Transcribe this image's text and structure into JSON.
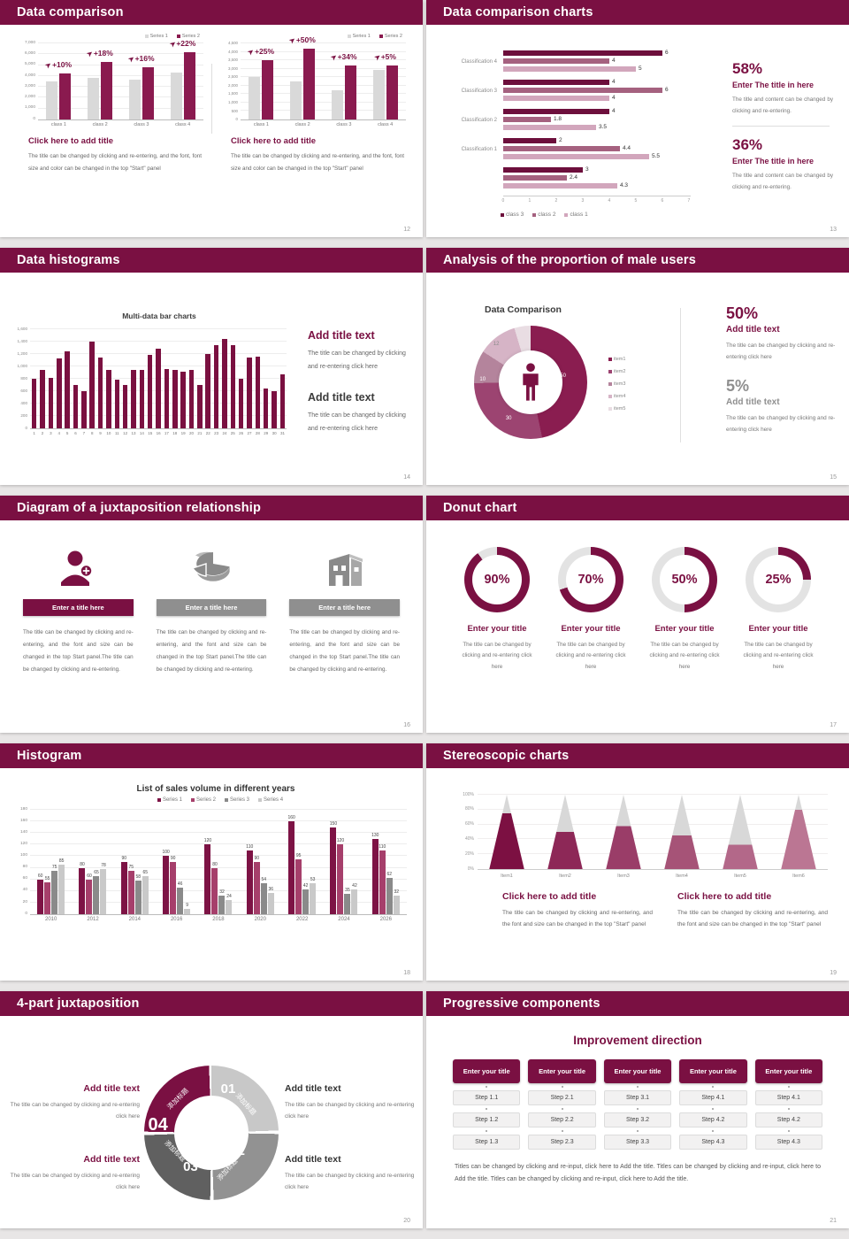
{
  "theme": {
    "maroon": "#7a1042",
    "bar_maroon": "#8a1a4f",
    "gray_bar": "#d9d9d9",
    "text_gray": "#666666",
    "page_bg": "#e8e6e6"
  },
  "slides": [
    {
      "id": 12,
      "title": "Data comparison",
      "page_num": "12",
      "legend": [
        "Series 1",
        "Series 2"
      ],
      "panels": [
        {
          "chart": {
            "type": "bar",
            "categories": [
              "class 1",
              "class 2",
              "class 3",
              "class 4"
            ],
            "series": [
              {
                "name": "Series 1",
                "values": [
                  3500,
                  3800,
                  3700,
                  4300
                ]
              },
              {
                "name": "Series 2",
                "values": [
                  4200,
                  5300,
                  4800,
                  6200
                ]
              }
            ],
            "growth_labels": [
              "+10%",
              "+18%",
              "+16%",
              "+22%"
            ],
            "ylim": [
              0,
              7000
            ],
            "ytick_step": 1000
          },
          "block_title": "Click here to add title",
          "block_body": "The title can be changed by clicking and re-entering, and the font, font size and color can be changed in the top \"Start\" panel"
        },
        {
          "chart": {
            "type": "bar",
            "categories": [
              "class 1",
              "class 2",
              "class 3",
              "class 4"
            ],
            "series": [
              {
                "name": "Series 1",
                "values": [
                  2500,
                  2250,
                  1750,
                  2950
                ]
              },
              {
                "name": "Series 2",
                "values": [
                  3500,
                  4200,
                  3200,
                  3200
                ]
              }
            ],
            "growth_labels": [
              "+25%",
              "+50%",
              "+34%",
              "+5%"
            ],
            "ylim": [
              0,
              4500
            ],
            "ytick_step": 500
          },
          "block_title": "Click here to add title",
          "block_body": "The title can be changed by clicking and re-entering, and the font, font size and color can be changed in the top \"Start\" panel"
        }
      ]
    },
    {
      "id": 13,
      "title": "Data comparison charts",
      "page_num": "13",
      "chart": {
        "type": "bar-horizontal",
        "xlim": [
          0,
          7
        ],
        "xticks": [
          "0",
          "1",
          "2",
          "3",
          "4",
          "5",
          "6",
          "7"
        ],
        "legend": [
          "class 3",
          "class 2",
          "class 1"
        ],
        "groups": [
          {
            "label": "Classification 4",
            "values": [
              6,
              4,
              5
            ]
          },
          {
            "label": "Classification 3",
            "values": [
              4,
              6,
              4
            ]
          },
          {
            "label": "Classification 2",
            "values": [
              4,
              1.8,
              3.5
            ]
          },
          {
            "label": "Classification 1",
            "values": [
              2,
              4.4,
              5.5
            ]
          },
          {
            "label": "",
            "values": [
              3,
              2.4,
              4.3
            ]
          }
        ]
      },
      "stats": [
        {
          "value": "58%",
          "title": "Enter The title in here",
          "body": "The title and content can be changed by clicking and re-entering."
        },
        {
          "value": "36%",
          "title": "Enter The title in here",
          "body": "The title and content can be changed by clicking and re-entering."
        }
      ]
    },
    {
      "id": 14,
      "title": "Data histograms",
      "page_num": "14",
      "chart": {
        "type": "bar",
        "title": "Multi-data bar charts",
        "ylim": [
          0,
          1600
        ],
        "ytick_step": 200,
        "categories": [
          "1",
          "2",
          "3",
          "4",
          "5",
          "6",
          "7",
          "8",
          "9",
          "10",
          "11",
          "12",
          "13",
          "14",
          "15",
          "16",
          "17",
          "18",
          "19",
          "20",
          "21",
          "22",
          "23",
          "24",
          "25",
          "26",
          "27",
          "28",
          "29",
          "30",
          "31"
        ],
        "values": [
          800,
          950,
          820,
          1130,
          1240,
          700,
          600,
          1400,
          1150,
          950,
          780,
          700,
          950,
          950,
          1180,
          1290,
          960,
          950,
          920,
          950,
          700,
          1200,
          1350,
          1450,
          1350,
          800,
          1150,
          1160,
          650,
          600,
          870
        ]
      },
      "blocks": [
        {
          "title": "Add title text",
          "style": "maroon",
          "body": "The title can be changed by clicking and re-entering click here"
        },
        {
          "title": "Add title text",
          "style": "dark",
          "body": "The title can be changed by clicking and re-entering click here"
        }
      ]
    },
    {
      "id": 15,
      "title": "Analysis of the proportion of male users",
      "page_num": "15",
      "chart": {
        "type": "donut",
        "title": "Data Comparison",
        "items": [
          {
            "label": "item1",
            "value": 50
          },
          {
            "label": "item2",
            "value": 30
          },
          {
            "label": "item3",
            "value": 10
          },
          {
            "label": "item4",
            "value": 12
          },
          {
            "label": "item5",
            "value": 5
          }
        ],
        "colors": [
          "#8a1d50",
          "#9c4471",
          "#b4849c",
          "#d6b4c6",
          "#e9dde3"
        ],
        "shown_labels": [
          "50",
          "30",
          "10",
          "12"
        ]
      },
      "stats": [
        {
          "value": "50%",
          "style": "maroon",
          "title": "Add title text",
          "body": "The title can be changed by clicking and re-entering click here"
        },
        {
          "value": "5%",
          "style": "gray",
          "title": "Add title text",
          "body": "The title can be changed by clicking and re-entering click here"
        }
      ]
    },
    {
      "id": 16,
      "title": "Diagram of a juxtaposition relationship",
      "page_num": "16",
      "columns": [
        {
          "icon": "person-add",
          "style": "maroon",
          "bar_label": "Enter a title here",
          "body": "The title can be changed by clicking and re-entering, and the font and size can be changed in the top Start panel.The title can be changed by clicking and re-entering."
        },
        {
          "icon": "pie-chart",
          "style": "gray",
          "bar_label": "Enter a title here",
          "body": "The title can be changed by clicking and re-entering, and the font and size can be changed in the top Start panel.The title can be changed by clicking and re-entering."
        },
        {
          "icon": "building",
          "style": "gray",
          "bar_label": "Enter a title here",
          "body": "The title can be changed by clicking and re-entering, and the font and size can be changed in the top Start panel.The title can be changed by clicking and re-entering."
        }
      ]
    },
    {
      "id": 17,
      "title": "Donut chart",
      "page_num": "17",
      "gauges": [
        {
          "percent": 90,
          "label": "90%"
        },
        {
          "percent": 70,
          "label": "70%"
        },
        {
          "percent": 50,
          "label": "50%"
        },
        {
          "percent": 25,
          "label": "25%"
        }
      ],
      "gauge_title": "Enter your title",
      "gauge_body": "The title can be changed by clicking and re-entering click here"
    },
    {
      "id": 18,
      "title": "Histogram",
      "page_num": "18",
      "chart": {
        "type": "bar",
        "title": "List of sales volume in different years",
        "categories": [
          "2010",
          "2012",
          "2014",
          "2016",
          "2018",
          "2020",
          "2022",
          "2024",
          "2026"
        ],
        "series": [
          {
            "name": "Series 1",
            "values": [
              60,
              80,
              90,
              100,
              120,
              110,
              160,
              150,
              130
            ]
          },
          {
            "name": "Series 2",
            "values": [
              55,
              60,
              75,
              90,
              80,
              90,
              95,
              120,
              110
            ]
          },
          {
            "name": "Series 3",
            "values": [
              75,
              65,
              58,
              46,
              32,
              54,
              42,
              35,
              62
            ]
          },
          {
            "name": "Series 4",
            "values": [
              85,
              78,
              65,
              9,
              24,
              36,
              53,
              42,
              32
            ]
          }
        ],
        "ylim": [
          0,
          180
        ],
        "ytick_step": 20
      }
    },
    {
      "id": 19,
      "title": "Stereoscopic charts",
      "page_num": "19",
      "chart": {
        "type": "cone",
        "categories": [
          "Item1",
          "Item2",
          "Item3",
          "Item4",
          "Item5",
          "Item6"
        ],
        "values_percent": [
          75,
          50,
          58,
          45,
          33,
          80
        ],
        "colors": [
          "#7c1042",
          "#8d2857",
          "#9a3d68",
          "#a65377",
          "#b36889",
          "#bb7693"
        ],
        "yticks": [
          "0%",
          "20%",
          "40%",
          "60%",
          "80%",
          "100%"
        ]
      },
      "blocks": [
        {
          "title": "Click here to add title",
          "body": "The title can be changed by clicking and re-entering, and the font and size can be changed in the top \"Start\" panel"
        },
        {
          "title": "Click here to add title",
          "body": "The title can be changed by clicking and re-entering, and the font and size can be changed in the top \"Start\" panel"
        }
      ]
    },
    {
      "id": 20,
      "title": "4-part juxtaposition",
      "page_num": "20",
      "ring": {
        "segments": [
          {
            "num": "01",
            "label": "添加标题",
            "color": "#c8c8c8"
          },
          {
            "num": "02",
            "label": "添加标题",
            "color": "#929292"
          },
          {
            "num": "03",
            "label": "添加标题",
            "color": "#606060"
          },
          {
            "num": "04",
            "label": "添加标题",
            "color": "#7a1042"
          }
        ]
      },
      "blocks": [
        {
          "pos": "left-top",
          "style": "maroon",
          "title": "Add title text",
          "body": "The title can be changed by clicking and re-entering click here"
        },
        {
          "pos": "right-top",
          "style": "dark",
          "title": "Add title text",
          "body": "The title can be changed by clicking and re-entering click here"
        },
        {
          "pos": "left-bottom",
          "style": "maroon",
          "title": "Add title text",
          "body": "The title can be changed by clicking and re-entering click here"
        },
        {
          "pos": "right-bottom",
          "style": "dark",
          "title": "Add title text",
          "body": "The title can be changed by clicking and re-entering click here"
        }
      ]
    },
    {
      "id": 21,
      "title": "Progressive components",
      "page_num": "21",
      "heading": "Improvement direction",
      "columns": [
        {
          "header": "Enter your title",
          "steps": [
            "Step 1.1",
            "Step 1.2",
            "Step 1.3"
          ]
        },
        {
          "header": "Enter your title",
          "steps": [
            "Step 2.1",
            "Step 2.2",
            "Step 2.3"
          ]
        },
        {
          "header": "Enter your title",
          "steps": [
            "Step 3.1",
            "Step 3.2",
            "Step 3.3"
          ]
        },
        {
          "header": "Enter your title",
          "steps": [
            "Step 4.1",
            "Step 4.2",
            "Step 4.3"
          ]
        },
        {
          "header": "Enter your title",
          "steps": [
            "Step 4.1",
            "Step 4.2",
            "Step 4.3"
          ]
        }
      ],
      "footer": "Titles can be changed by clicking and re-input, click here to Add the title. Titles can be changed by clicking and re-input, click here to Add the title. Titles can be changed by clicking and re-input, click here to Add the title."
    }
  ],
  "chart_data": [
    {
      "id": "slide12-left",
      "type": "bar",
      "categories": [
        "class 1",
        "class 2",
        "class 3",
        "class 4"
      ],
      "series": [
        {
          "name": "Series 1",
          "values": [
            3500,
            3800,
            3700,
            4300
          ]
        },
        {
          "name": "Series 2",
          "values": [
            4200,
            5300,
            4800,
            6200
          ]
        }
      ],
      "annotations": [
        "+10%",
        "+18%",
        "+16%",
        "+22%"
      ],
      "ylim": [
        0,
        7000
      ]
    },
    {
      "id": "slide12-right",
      "type": "bar",
      "categories": [
        "class 1",
        "class 2",
        "class 3",
        "class 4"
      ],
      "series": [
        {
          "name": "Series 1",
          "values": [
            2500,
            2250,
            1750,
            2950
          ]
        },
        {
          "name": "Series 2",
          "values": [
            3500,
            4200,
            3200,
            3200
          ]
        }
      ],
      "annotations": [
        "+25%",
        "+50%",
        "+34%",
        "+5%"
      ],
      "ylim": [
        0,
        4500
      ]
    },
    {
      "id": "slide13",
      "type": "bar",
      "orientation": "horizontal",
      "xlim": [
        0,
        7
      ],
      "categories": [
        "Classification 4",
        "Classification 3",
        "Classification 2",
        "Classification 1",
        ""
      ],
      "series": [
        {
          "name": "class 3",
          "values": [
            6,
            4,
            4,
            2,
            3
          ]
        },
        {
          "name": "class 2",
          "values": [
            4,
            6,
            1.8,
            4.4,
            2.4
          ]
        },
        {
          "name": "class 1",
          "values": [
            5,
            4,
            3.5,
            5.5,
            4.3
          ]
        }
      ]
    },
    {
      "id": "slide14",
      "type": "bar",
      "title": "Multi-data bar charts",
      "ylim": [
        0,
        1600
      ],
      "categories": [
        "1",
        "2",
        "3",
        "4",
        "5",
        "6",
        "7",
        "8",
        "9",
        "10",
        "11",
        "12",
        "13",
        "14",
        "15",
        "16",
        "17",
        "18",
        "19",
        "20",
        "21",
        "22",
        "23",
        "24",
        "25",
        "26",
        "27",
        "28",
        "29",
        "30",
        "31"
      ],
      "values": [
        800,
        950,
        820,
        1130,
        1240,
        700,
        600,
        1400,
        1150,
        950,
        780,
        700,
        950,
        950,
        1180,
        1290,
        960,
        950,
        920,
        950,
        700,
        1200,
        1350,
        1450,
        1350,
        800,
        1150,
        1160,
        650,
        600,
        870
      ]
    },
    {
      "id": "slide15",
      "type": "pie",
      "title": "Data Comparison",
      "categories": [
        "item1",
        "item2",
        "item3",
        "item4",
        "item5"
      ],
      "values": [
        50,
        30,
        10,
        12,
        5
      ]
    },
    {
      "id": "slide17",
      "type": "pie",
      "subtype": "gauge-rings",
      "values": [
        90,
        70,
        50,
        25
      ]
    },
    {
      "id": "slide18",
      "type": "bar",
      "title": "List of sales volume in different years",
      "ylim": [
        0,
        180
      ],
      "categories": [
        "2010",
        "2012",
        "2014",
        "2016",
        "2018",
        "2020",
        "2022",
        "2024",
        "2026"
      ],
      "series": [
        {
          "name": "Series 1",
          "values": [
            60,
            80,
            90,
            100,
            120,
            110,
            160,
            150,
            130
          ]
        },
        {
          "name": "Series 2",
          "values": [
            55,
            60,
            75,
            90,
            80,
            90,
            95,
            120,
            110
          ]
        },
        {
          "name": "Series 3",
          "values": [
            75,
            65,
            58,
            46,
            32,
            54,
            42,
            35,
            62
          ]
        },
        {
          "name": "Series 4",
          "values": [
            85,
            78,
            65,
            9,
            24,
            36,
            53,
            42,
            32
          ]
        }
      ]
    },
    {
      "id": "slide19",
      "type": "bar",
      "subtype": "cone",
      "ylim_percent": [
        0,
        100
      ],
      "categories": [
        "Item1",
        "Item2",
        "Item3",
        "Item4",
        "Item5",
        "Item6"
      ],
      "values": [
        75,
        50,
        58,
        45,
        33,
        80
      ]
    }
  ]
}
